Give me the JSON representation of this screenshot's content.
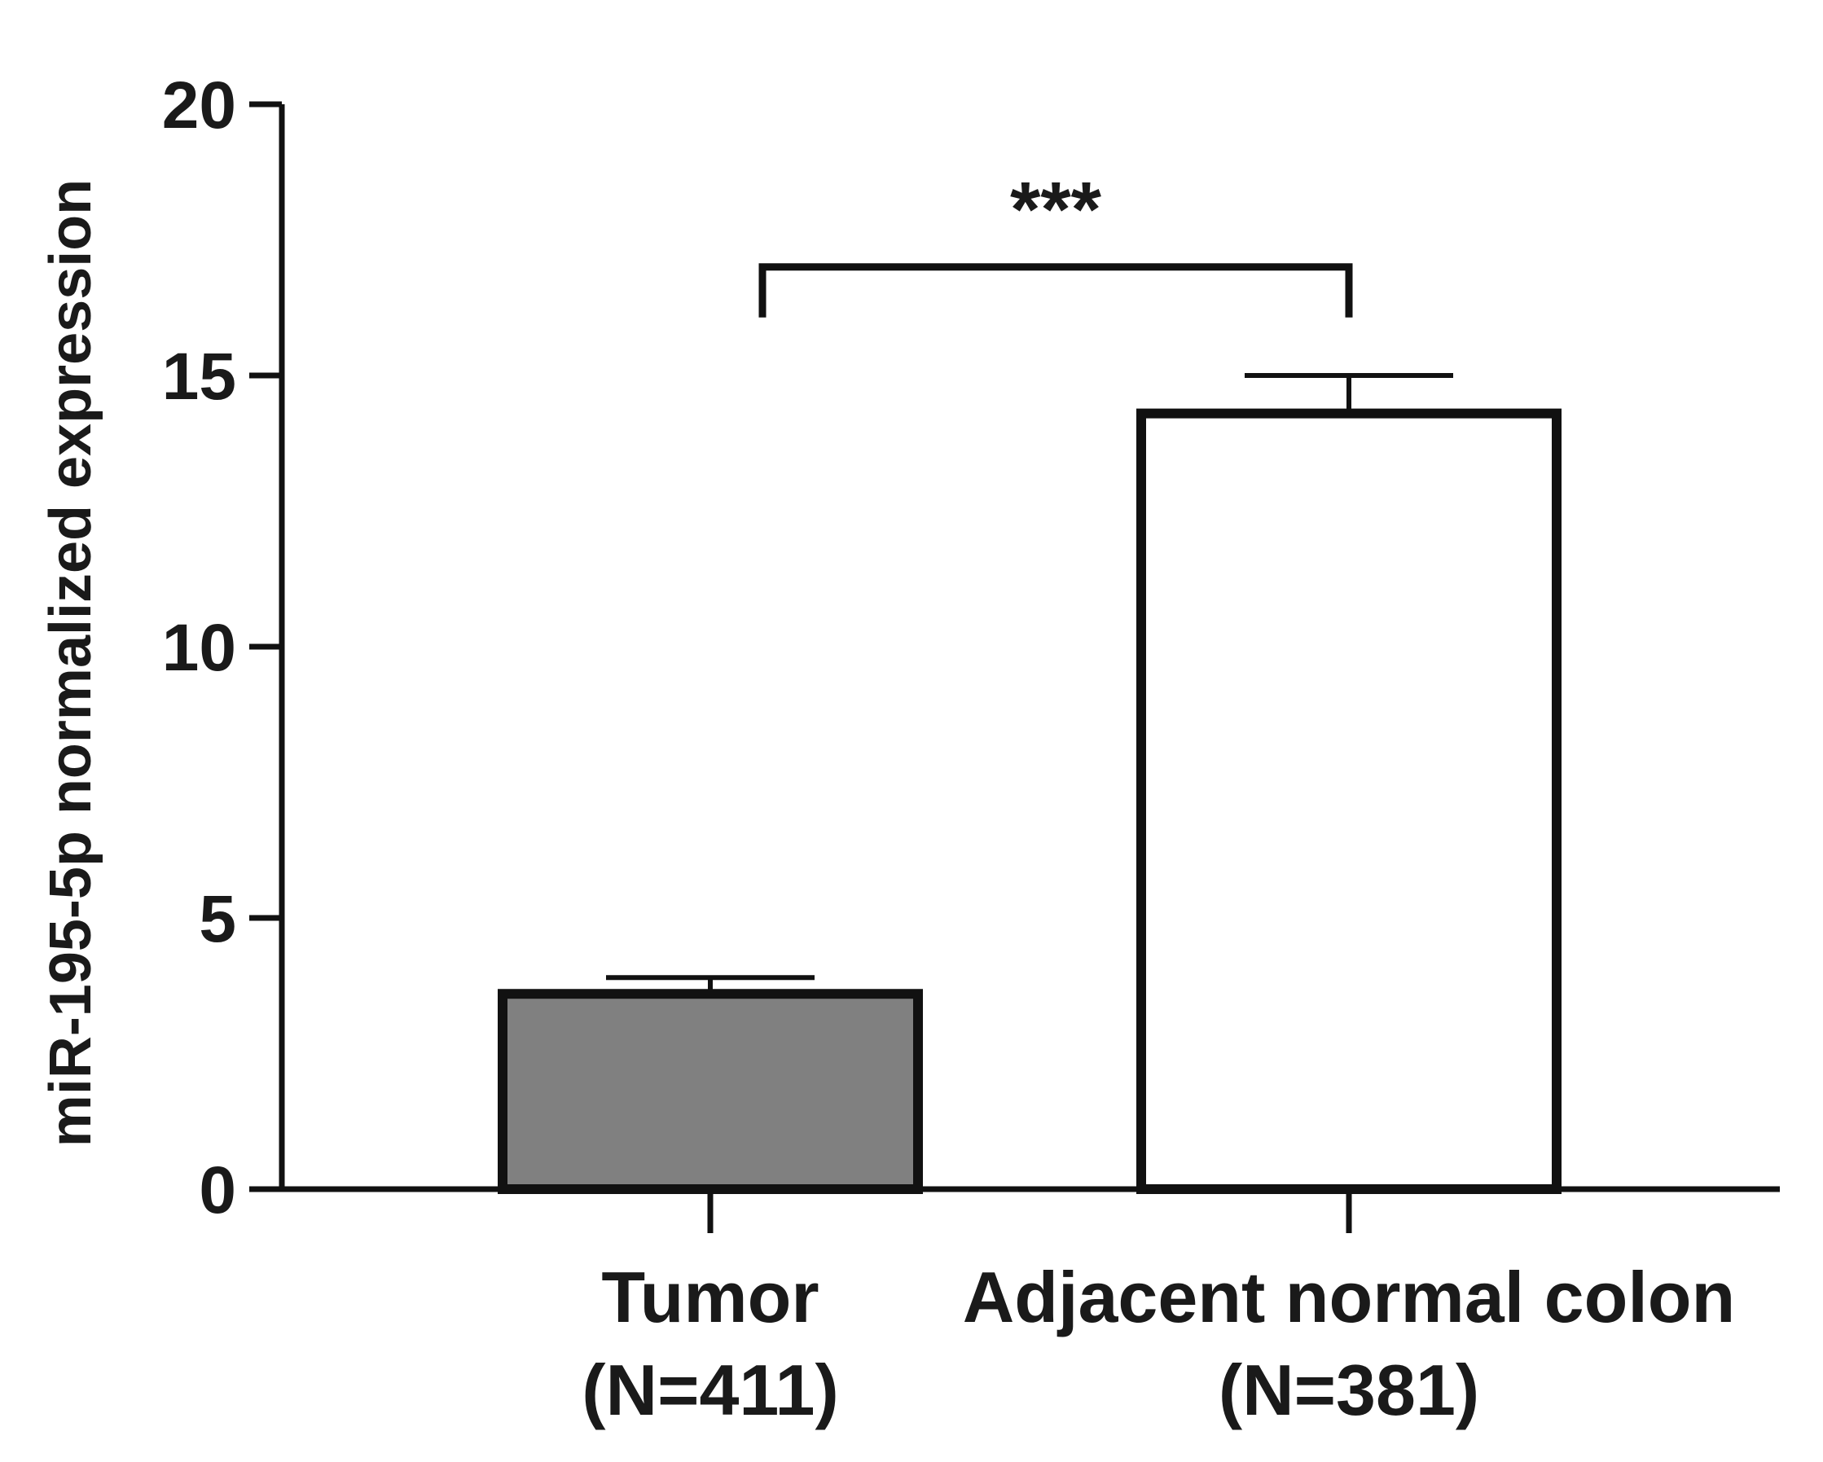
{
  "chart_data": {
    "type": "bar",
    "title": "",
    "xlabel": "",
    "ylabel": "miR-195-5p normalized expression",
    "ylim": [
      0,
      20
    ],
    "yticks": [
      0,
      5,
      10,
      15,
      20
    ],
    "grid": false,
    "legend": "none",
    "categories": [
      {
        "name": "Tumor",
        "n_label": "(N=411)"
      },
      {
        "name": "Adjacent normal colon",
        "n_label": "(N=381)"
      }
    ],
    "values": [
      3.6,
      14.3
    ],
    "error_upper": [
      3.9,
      15.0
    ],
    "bar_colors": [
      "#808080",
      "#ffffff"
    ],
    "significance": {
      "label": "***",
      "between": [
        0,
        1
      ],
      "level": 17.0
    }
  }
}
